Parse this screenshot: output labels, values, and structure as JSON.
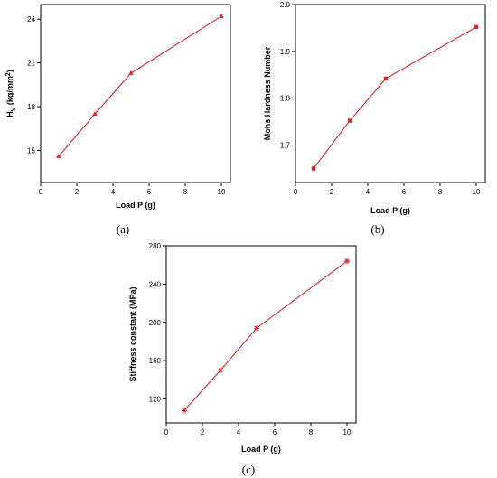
{
  "chart_data": [
    {
      "type": "line",
      "caption": "(a)",
      "xlabel": "Load P (g)",
      "ylabel": "H<sub>V</sub> (kg/mm<sup>2</sup>)",
      "ylabel_parts": [
        "H",
        "V",
        " (kg/mm",
        "2",
        ")"
      ],
      "xlim": [
        0,
        10.5
      ],
      "ylim": [
        12.8,
        25
      ],
      "xticks": [
        0,
        2,
        4,
        6,
        8,
        10
      ],
      "yticks": [
        15,
        18,
        21,
        24
      ],
      "marker": "triangle",
      "color": "#e8202a",
      "series": [
        {
          "x": [
            1,
            3,
            5,
            10
          ],
          "y": [
            14.6,
            17.5,
            20.3,
            24.2
          ]
        }
      ]
    },
    {
      "type": "line",
      "caption": "(b)",
      "xlabel": "Load P (g)",
      "ylabel": "Mohs Hardness Number",
      "xlim": [
        0,
        10.5
      ],
      "ylim": [
        1.62,
        2.0
      ],
      "xticks": [
        0,
        2,
        4,
        6,
        8,
        10
      ],
      "yticks": [
        1.7,
        1.8,
        1.9,
        2.0
      ],
      "yformat": 1,
      "marker": "square",
      "color": "#e8202a",
      "series": [
        {
          "x": [
            1,
            3,
            5,
            10
          ],
          "y": [
            1.65,
            1.752,
            1.842,
            1.952
          ]
        }
      ]
    },
    {
      "type": "line",
      "caption": "(c)",
      "xlabel": "Load P (g)",
      "ylabel": "Stiffness constant (MPa)",
      "xlim": [
        0,
        10.5
      ],
      "ylim": [
        95,
        280
      ],
      "xticks": [
        0,
        2,
        4,
        6,
        8,
        10
      ],
      "yticks": [
        120,
        160,
        200,
        240,
        280
      ],
      "marker": "star",
      "color": "#e8202a",
      "series": [
        {
          "x": [
            1,
            3,
            5,
            10
          ],
          "y": [
            108,
            150,
            194,
            264
          ]
        }
      ]
    }
  ]
}
